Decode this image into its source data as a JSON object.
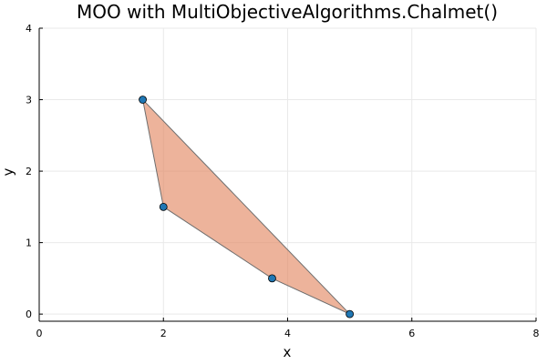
{
  "chart_data": {
    "type": "scatter",
    "title": "MOO with MultiObjectiveAlgorithms.Chalmet()",
    "xlabel": "x",
    "ylabel": "y",
    "xlim": [
      0,
      8
    ],
    "ylim": [
      -0.1,
      4
    ],
    "xticks": [
      0,
      2,
      4,
      6,
      8
    ],
    "yticks": [
      0,
      1,
      2,
      3,
      4
    ],
    "grid": true,
    "legend": "none",
    "polygon": {
      "vertices": [
        [
          1.667,
          3.0
        ],
        [
          2.0,
          1.5
        ],
        [
          3.75,
          0.5
        ],
        [
          5.0,
          0.0
        ]
      ],
      "fill_color": "#e38a66",
      "edge_color": "#6e6e6e"
    },
    "series": [
      {
        "x": [
          1.667,
          2.0,
          3.75,
          5.0
        ],
        "y": [
          3.0,
          1.5,
          0.5,
          0.0
        ],
        "color": "#1f77b4"
      }
    ]
  }
}
